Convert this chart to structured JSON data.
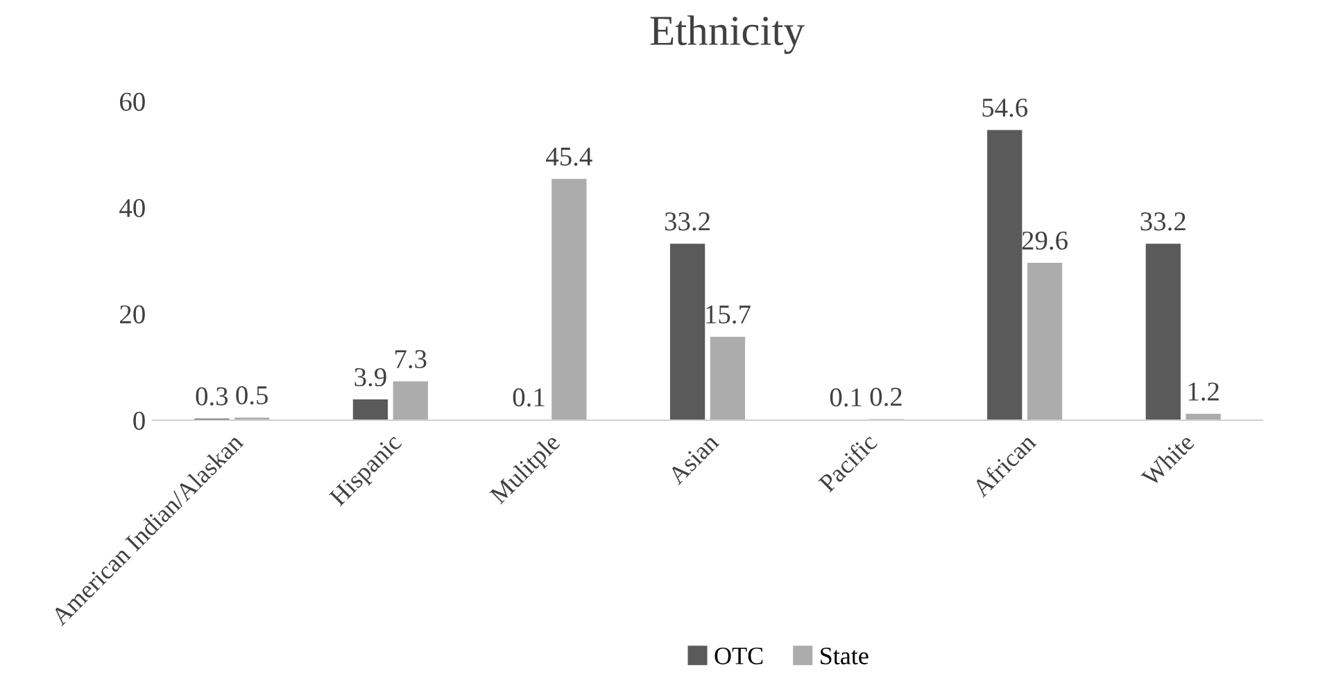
{
  "chart_data": {
    "type": "bar",
    "title": "Ethnicity",
    "categories": [
      "American Indian/Alaskan",
      "Hispanic",
      "Mulitple",
      "Asian",
      "Pacific",
      "African",
      "White"
    ],
    "series": [
      {
        "name": "OTC",
        "color": "#5a5a5a",
        "values": [
          0.3,
          3.9,
          0.1,
          33.2,
          0.1,
          54.6,
          33.2
        ]
      },
      {
        "name": "State",
        "color": "#acacac",
        "values": [
          0.5,
          7.3,
          45.4,
          15.7,
          0.2,
          29.6,
          1.2
        ]
      }
    ],
    "ylim": [
      0,
      60
    ],
    "yticks": [
      0,
      20,
      40,
      60
    ],
    "grid": false,
    "data_labels": true,
    "legend": "bottom"
  }
}
